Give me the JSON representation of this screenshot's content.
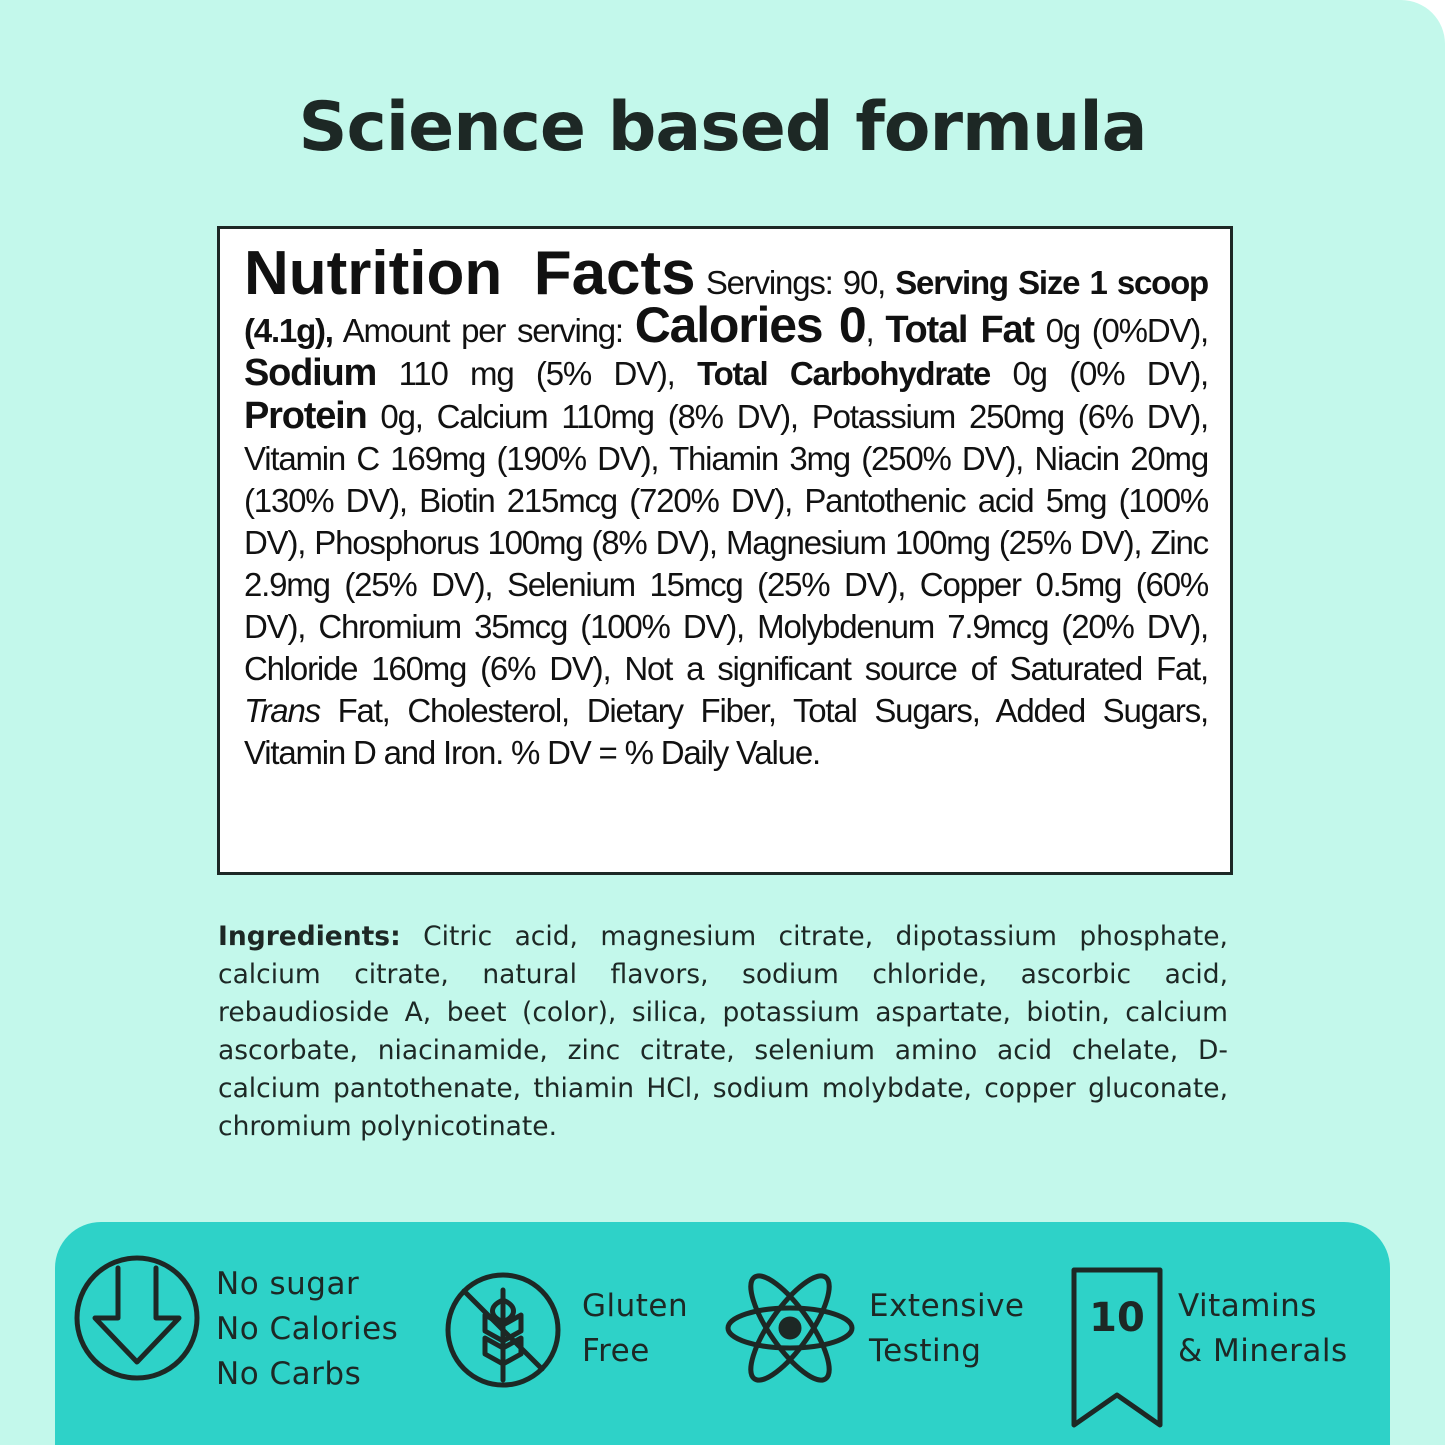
{
  "title": "Science based formula",
  "nutrition": {
    "segments": [
      {
        "text": "Nutrition Facts",
        "style": "heading"
      },
      {
        "text": " Servings: 90, ",
        "style": "normal"
      },
      {
        "text": "Serving Size 1 scoop (4.1g),",
        "style": "bold"
      },
      {
        "text": " Amount per serving: ",
        "style": "normal"
      },
      {
        "text": "Calories 0",
        "style": "large"
      },
      {
        "text": ", ",
        "style": "normal"
      },
      {
        "text": "Total Fat",
        "style": "emphasis"
      },
      {
        "text": " 0g (0%DV), ",
        "style": "normal"
      },
      {
        "text": "Sodium",
        "style": "emphasis"
      },
      {
        "text": " 110 mg (5% DV), ",
        "style": "normal"
      },
      {
        "text": "Total Carbohydrate",
        "style": "bold"
      },
      {
        "text": " 0g (0% DV), ",
        "style": "normal"
      },
      {
        "text": "Protein",
        "style": "emphasis"
      },
      {
        "text": " 0g, Calcium 110mg (8% DV), Potassium 250mg (6% DV), Vitamin C 169mg (190% DV), Thiamin 3mg (250% DV), Niacin 20mg (130% DV), Biotin 215mcg (720% DV), Pantothenic acid 5mg (100% DV), Phosphorus 100mg (8% DV), Magnesium 100mg (25% DV), Zinc 2.9mg (25% DV), Selenium 15mcg (25% DV), Copper 0.5mg (60% DV), Chromium 35mcg (100% DV), Molybdenum 7.9mcg (20% DV), Chloride 160mg (6% DV), Not a significant source of Saturated Fat, ",
        "style": "normal"
      },
      {
        "text": "Trans",
        "style": "italic"
      },
      {
        "text": " Fat, Cholesterol, Dietary Fiber, Total Sugars, Added Sugars, Vitamin D and Iron. % DV = % Daily Value.",
        "style": "normal"
      }
    ]
  },
  "ingredients": {
    "label": "Ingredients:",
    "text": "Citric acid, magnesium citrate, dipotassium phosphate, calcium citrate, natural flavors, sodium chloride, ascorbic acid, rebaudioside A, beet (color), silica, potassium aspartate, biotin, calcium ascorbate, niacinamide, zinc citrate, selenium amino acid chelate, D-calcium pantothenate, thiamin HCl, sodium molybdate, copper gluconate, chromium polynicotinate."
  },
  "features": [
    {
      "lines": [
        "No sugar",
        "No Calories",
        "No Carbs"
      ]
    },
    {
      "lines": [
        "Gluten",
        "Free"
      ]
    },
    {
      "lines": [
        "Extensive",
        "Testing"
      ]
    },
    {
      "badge": "10",
      "lines": [
        "Vitamins",
        "& Minerals"
      ]
    }
  ]
}
